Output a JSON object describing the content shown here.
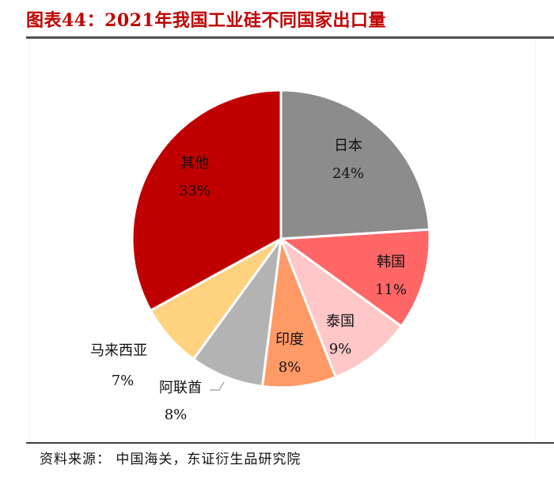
{
  "header": {
    "title": "图表44：2021年我国工业硅不同国家出口量"
  },
  "footer": {
    "source": "资料来源：  中国海关，东证衍生品研究院"
  },
  "colors": {
    "title": "#C00000",
    "日本": "#8C8C8C",
    "韩国": "#FF6666",
    "泰国": "#FFC7C7",
    "印度": "#FF9966",
    "阿联酋": "#B3B3B3",
    "马来西亚": "#FFD280",
    "其他": "#C00000"
  },
  "chart_data": {
    "type": "pie",
    "title": "2021年我国工业硅不同国家出口量",
    "categories": [
      "日本",
      "韩国",
      "泰国",
      "印度",
      "阿联酋",
      "马来西亚",
      "其他"
    ],
    "values": [
      24,
      11,
      9,
      8,
      8,
      7,
      33
    ],
    "unit": "%",
    "start_angle": "12 o'clock, clockwise",
    "legend": "none (data labels on/near slices)",
    "labels": [
      {
        "name": "日本",
        "pct": "24%"
      },
      {
        "name": "韩国",
        "pct": "11%"
      },
      {
        "name": "泰国",
        "pct": "9%"
      },
      {
        "name": "印度",
        "pct": "8%"
      },
      {
        "name": "阿联酋",
        "pct": "8%"
      },
      {
        "name": "马来西亚",
        "pct": "7%"
      },
      {
        "name": "其他",
        "pct": "33%"
      }
    ]
  }
}
